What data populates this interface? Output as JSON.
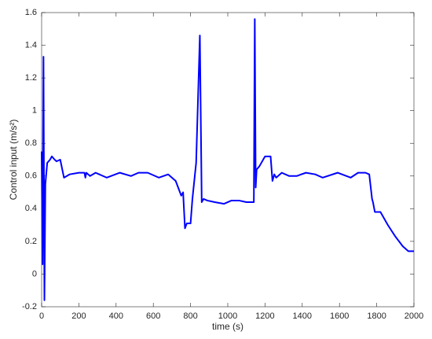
{
  "chart_data": {
    "type": "line",
    "xlabel": "time (s)",
    "ylabel": "Control input (m/s²)",
    "x": [
      0,
      5,
      10,
      15,
      20,
      30,
      45,
      55,
      70,
      80,
      100,
      120,
      150,
      200,
      230,
      235,
      240,
      260,
      290,
      350,
      420,
      480,
      520,
      570,
      630,
      680,
      720,
      750,
      760,
      770,
      780,
      800,
      810,
      830,
      850,
      860,
      870,
      890,
      930,
      980,
      1020,
      1060,
      1100,
      1140,
      1145,
      1150,
      1155,
      1170,
      1200,
      1230,
      1240,
      1250,
      1260,
      1290,
      1330,
      1370,
      1420,
      1470,
      1510,
      1590,
      1660,
      1700,
      1740,
      1760,
      1775,
      1780,
      1790,
      1820,
      1860,
      1900,
      1940,
      1970,
      2000
    ],
    "series": [
      {
        "name": "control",
        "color": "#0000ff",
        "values": [
          0.75,
          0.06,
          1.33,
          -0.16,
          0.55,
          0.68,
          0.7,
          0.72,
          0.7,
          0.69,
          0.7,
          0.59,
          0.61,
          0.62,
          0.62,
          0.59,
          0.62,
          0.6,
          0.62,
          0.59,
          0.62,
          0.6,
          0.62,
          0.62,
          0.59,
          0.61,
          0.57,
          0.48,
          0.5,
          0.28,
          0.31,
          0.31,
          0.46,
          0.68,
          1.46,
          0.44,
          0.46,
          0.45,
          0.44,
          0.43,
          0.45,
          0.45,
          0.44,
          0.44,
          1.56,
          0.53,
          0.64,
          0.66,
          0.72,
          0.72,
          0.57,
          0.61,
          0.59,
          0.62,
          0.6,
          0.6,
          0.62,
          0.61,
          0.59,
          0.62,
          0.59,
          0.62,
          0.62,
          0.61,
          0.46,
          0.44,
          0.38,
          0.38,
          0.3,
          0.23,
          0.17,
          0.14,
          0.14
        ]
      }
    ],
    "xlim": [
      0,
      2000
    ],
    "xticks": [
      0,
      200,
      400,
      600,
      800,
      1000,
      1200,
      1400,
      1600,
      1800,
      2000
    ],
    "ylim": [
      -0.2,
      1.6
    ],
    "yticks": [
      -0.2,
      0,
      0.2,
      0.4,
      0.6,
      0.8,
      1,
      1.2,
      1.4,
      1.6
    ],
    "grid": false
  }
}
